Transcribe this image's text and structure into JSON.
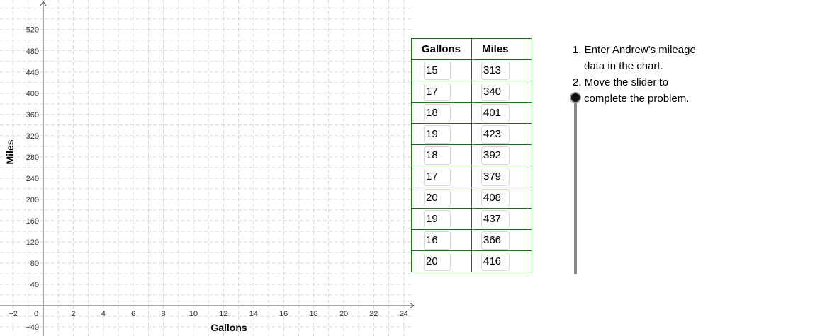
{
  "graph": {
    "x_axis_label": "Gallons",
    "y_axis_label": "Miles",
    "x_ticks": [
      "−2",
      "0",
      "2",
      "4",
      "6",
      "8",
      "10",
      "12",
      "14",
      "16",
      "18",
      "20",
      "22",
      "24"
    ],
    "y_ticks": [
      "−40",
      "40",
      "80",
      "120",
      "160",
      "200",
      "240",
      "280",
      "320",
      "360",
      "400",
      "440",
      "480",
      "520"
    ],
    "x_range": [
      -2.4,
      25
    ],
    "y_range": [
      -46,
      555
    ],
    "grid": true
  },
  "table": {
    "headers": [
      "Gallons",
      "Miles"
    ],
    "rows": [
      [
        "15",
        "313"
      ],
      [
        "17",
        "340"
      ],
      [
        "18",
        "401"
      ],
      [
        "19",
        "423"
      ],
      [
        "18",
        "392"
      ],
      [
        "17",
        "379"
      ],
      [
        "20",
        "408"
      ],
      [
        "19",
        "437"
      ],
      [
        "16",
        "366"
      ],
      [
        "20",
        "416"
      ]
    ]
  },
  "instructions": {
    "line1": "1. Enter Andrew's mileage",
    "line2": "data in the chart.",
    "line3": "2. Move the slider to",
    "line4": "complete the problem."
  },
  "slider": {
    "value": 0
  },
  "colors": {
    "table_border": "#1a7a1a",
    "grid": "#cfcfcf",
    "slider_track": "#8a8a8a"
  }
}
